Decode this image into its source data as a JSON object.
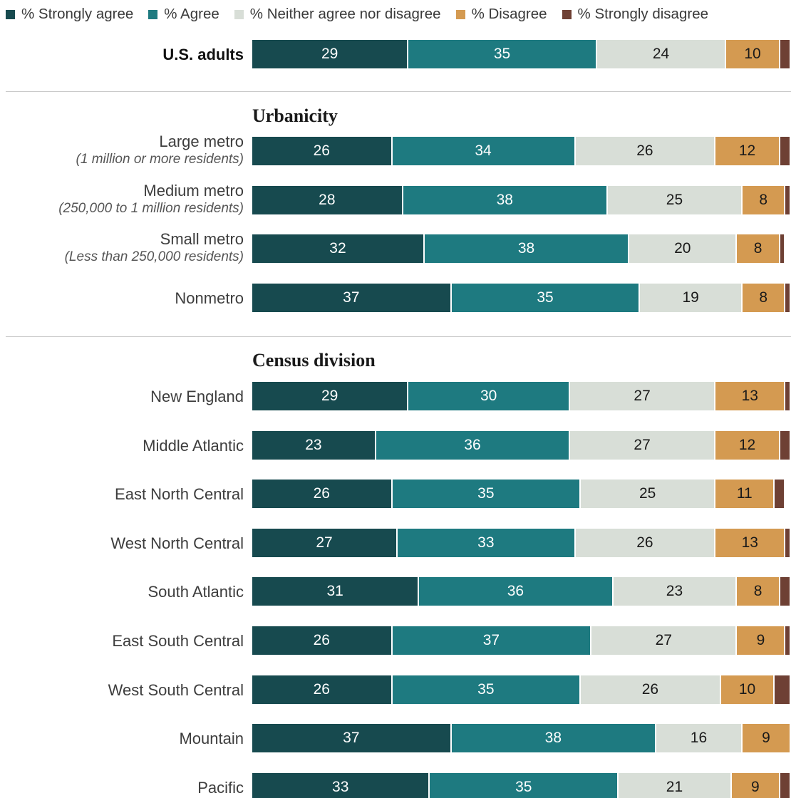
{
  "chart_data": {
    "type": "bar",
    "orientation": "horizontal",
    "stacked": true,
    "legend_position": "top",
    "series": [
      {
        "name": "% Strongly agree",
        "color": "#174a4f",
        "text_color": "#ffffff"
      },
      {
        "name": "% Agree",
        "color": "#1e7a80",
        "text_color": "#ffffff"
      },
      {
        "name": "% Neither agree nor disagree",
        "color": "#d8ded7",
        "text_color": "#1a1a1a"
      },
      {
        "name": "% Disagree",
        "color": "#d49a51",
        "text_color": "#1a1a1a"
      },
      {
        "name": "% Strongly disagree",
        "color": "#6e4034",
        "text_color": "#ffffff"
      }
    ],
    "groups": [
      {
        "title": "",
        "rows": [
          {
            "label": "U.S. adults",
            "sublabel": "",
            "bold": true,
            "values": [
              29,
              35,
              24,
              10,
              2
            ]
          }
        ]
      },
      {
        "title": "Urbanicity",
        "rows": [
          {
            "label": "Large metro",
            "sublabel": "(1 million or more residents)",
            "values": [
              26,
              34,
              26,
              12,
              2
            ]
          },
          {
            "label": "Medium metro",
            "sublabel": "(250,000 to 1 million residents)",
            "values": [
              28,
              38,
              25,
              8,
              1
            ]
          },
          {
            "label": "Small metro",
            "sublabel": "(Less than 250,000 residents)",
            "values": [
              32,
              38,
              20,
              8,
              1
            ]
          },
          {
            "label": "Nonmetro",
            "sublabel": "",
            "values": [
              37,
              35,
              19,
              8,
              1
            ]
          }
        ]
      },
      {
        "title": "Census division",
        "rows": [
          {
            "label": "New England",
            "sublabel": "",
            "values": [
              29,
              30,
              27,
              13,
              1
            ]
          },
          {
            "label": "Middle Atlantic",
            "sublabel": "",
            "values": [
              23,
              36,
              27,
              12,
              2
            ]
          },
          {
            "label": "East North Central",
            "sublabel": "",
            "values": [
              26,
              35,
              25,
              11,
              2
            ]
          },
          {
            "label": "West North Central",
            "sublabel": "",
            "values": [
              27,
              33,
              26,
              13,
              1
            ]
          },
          {
            "label": "South Atlantic",
            "sublabel": "",
            "values": [
              31,
              36,
              23,
              8,
              2
            ]
          },
          {
            "label": "East South Central",
            "sublabel": "",
            "values": [
              26,
              37,
              27,
              9,
              1
            ]
          },
          {
            "label": "West South Central",
            "sublabel": "",
            "values": [
              26,
              35,
              26,
              10,
              3
            ]
          },
          {
            "label": "Mountain",
            "sublabel": "",
            "values": [
              37,
              38,
              16,
              9,
              1
            ]
          },
          {
            "label": "Pacific",
            "sublabel": "",
            "values": [
              33,
              35,
              21,
              9,
              2
            ]
          }
        ]
      }
    ]
  }
}
